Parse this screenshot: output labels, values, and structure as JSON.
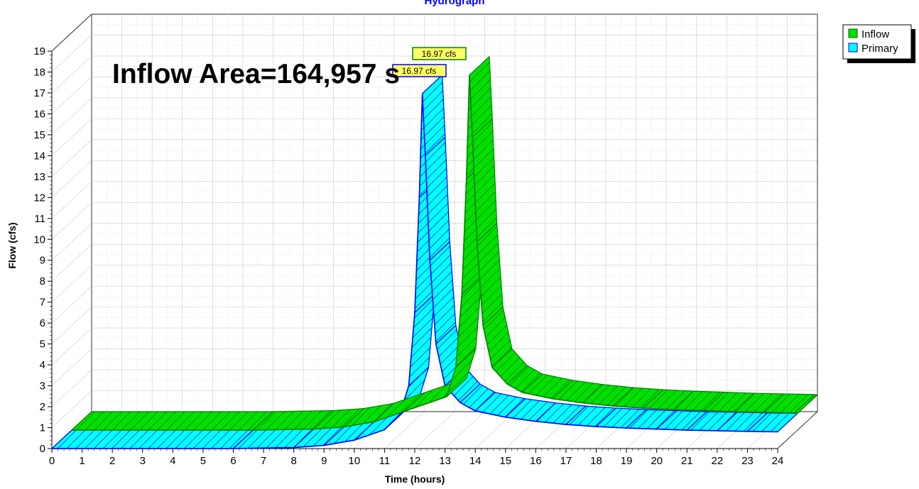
{
  "chart_data": {
    "type": "area",
    "title": "Hydrograph",
    "xlabel": "Time  (hours)",
    "ylabel": "Flow  (cfs)",
    "xlim": [
      0,
      24
    ],
    "ylim": [
      0,
      19
    ],
    "x_ticks": [
      "0",
      "1",
      "2",
      "3",
      "4",
      "5",
      "6",
      "7",
      "8",
      "9",
      "10",
      "11",
      "12",
      "13",
      "14",
      "15",
      "16",
      "17",
      "18",
      "19",
      "20",
      "21",
      "22",
      "23",
      "24"
    ],
    "y_ticks": [
      "0",
      "1",
      "2",
      "3",
      "4",
      "5",
      "6",
      "7",
      "8",
      "9",
      "10",
      "11",
      "12",
      "13",
      "14",
      "15",
      "16",
      "17",
      "18",
      "19"
    ],
    "grid": true,
    "legend_position": "top-right",
    "annotation": "Inflow Area=164,957 s",
    "series": [
      {
        "name": "Inflow",
        "color": "#00e000",
        "peak_label": "16.97 cfs",
        "points": [
          [
            0,
            0
          ],
          [
            6,
            0
          ],
          [
            8,
            0.05
          ],
          [
            9,
            0.15
          ],
          [
            10,
            0.4
          ],
          [
            11,
            0.9
          ],
          [
            11.5,
            1.6
          ],
          [
            11.8,
            3.0
          ],
          [
            12.0,
            6.5
          ],
          [
            12.15,
            12.0
          ],
          [
            12.25,
            16.97
          ],
          [
            12.35,
            14.0
          ],
          [
            12.5,
            9.0
          ],
          [
            12.7,
            5.0
          ],
          [
            13.0,
            3.0
          ],
          [
            13.5,
            2.2
          ],
          [
            14,
            1.8
          ],
          [
            15,
            1.5
          ],
          [
            16,
            1.3
          ],
          [
            17,
            1.15
          ],
          [
            18,
            1.05
          ],
          [
            19,
            0.98
          ],
          [
            20,
            0.93
          ],
          [
            21,
            0.88
          ],
          [
            22,
            0.85
          ],
          [
            23,
            0.82
          ],
          [
            24,
            0.8
          ]
        ]
      },
      {
        "name": "Primary",
        "color": "#00ffff",
        "peak_label": "16.97 cfs",
        "points": [
          [
            0,
            0
          ],
          [
            6,
            0
          ],
          [
            8,
            0.05
          ],
          [
            9,
            0.15
          ],
          [
            10,
            0.4
          ],
          [
            11,
            0.9
          ],
          [
            11.5,
            1.6
          ],
          [
            11.8,
            3.0
          ],
          [
            12.0,
            6.5
          ],
          [
            12.15,
            12.0
          ],
          [
            12.25,
            16.97
          ],
          [
            12.35,
            14.0
          ],
          [
            12.5,
            9.0
          ],
          [
            12.7,
            5.0
          ],
          [
            13.0,
            3.0
          ],
          [
            13.5,
            2.2
          ],
          [
            14,
            1.8
          ],
          [
            15,
            1.5
          ],
          [
            16,
            1.3
          ],
          [
            17,
            1.15
          ],
          [
            18,
            1.05
          ],
          [
            19,
            0.98
          ],
          [
            20,
            0.93
          ],
          [
            21,
            0.88
          ],
          [
            22,
            0.85
          ],
          [
            23,
            0.82
          ],
          [
            24,
            0.8
          ]
        ]
      }
    ]
  }
}
